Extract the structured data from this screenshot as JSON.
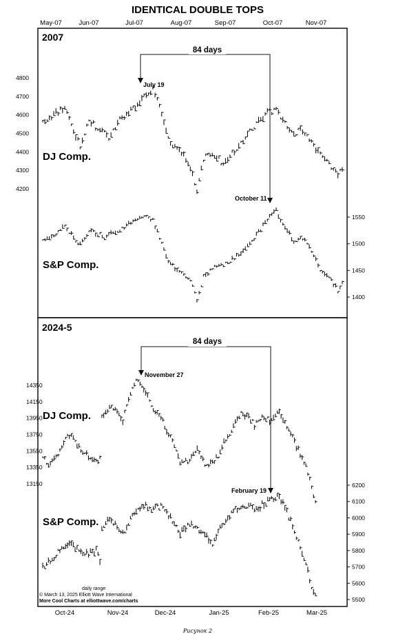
{
  "chart_data": {
    "type": "bar",
    "title": "IDENTICAL DOUBLE TOPS",
    "panels": [
      {
        "period": "2007",
        "top_months": [
          "May-07",
          "Jun-07",
          "Jul-07",
          "Aug-07",
          "Sep-07",
          "Oct-07",
          "Nov-07"
        ],
        "days_label": "84 days",
        "series": [
          {
            "name": "DJ Comp.",
            "yticks": [
              4200,
              4300,
              4400,
              4500,
              4600,
              4700,
              4800
            ],
            "yaxis_side": "left",
            "peak_label": "July 19",
            "anchors": [
              [
                0,
                4560
              ],
              [
                6,
                4610
              ],
              [
                10,
                4640
              ],
              [
                14,
                4520
              ],
              [
                17,
                4430
              ],
              [
                21,
                4580
              ],
              [
                25,
                4520
              ],
              [
                30,
                4480
              ],
              [
                34,
                4560
              ],
              [
                40,
                4620
              ],
              [
                46,
                4700
              ],
              [
                50,
                4740
              ],
              [
                53,
                4650
              ],
              [
                56,
                4500
              ],
              [
                60,
                4420
              ],
              [
                64,
                4380
              ],
              [
                68,
                4280
              ],
              [
                70,
                4180
              ],
              [
                73,
                4360
              ],
              [
                77,
                4400
              ],
              [
                82,
                4330
              ],
              [
                86,
                4390
              ],
              [
                90,
                4440
              ],
              [
                94,
                4520
              ],
              [
                98,
                4560
              ],
              [
                102,
                4610
              ],
              [
                106,
                4630
              ],
              [
                110,
                4560
              ],
              [
                114,
                4500
              ],
              [
                118,
                4520
              ],
              [
                122,
                4460
              ],
              [
                126,
                4380
              ],
              [
                130,
                4330
              ],
              [
                134,
                4280
              ],
              [
                136,
                4300
              ]
            ]
          },
          {
            "name": "S&P Comp.",
            "yticks": [
              1400,
              1450,
              1500,
              1550
            ],
            "yaxis_side": "right",
            "peak_label": "October 11",
            "anchors": [
              [
                0,
                1505
              ],
              [
                6,
                1520
              ],
              [
                10,
                1532
              ],
              [
                14,
                1512
              ],
              [
                17,
                1498
              ],
              [
                22,
                1525
              ],
              [
                28,
                1512
              ],
              [
                34,
                1525
              ],
              [
                40,
                1540
              ],
              [
                46,
                1552
              ],
              [
                50,
                1545
              ],
              [
                53,
                1510
              ],
              [
                56,
                1475
              ],
              [
                60,
                1455
              ],
              [
                64,
                1445
              ],
              [
                68,
                1425
              ],
              [
                70,
                1390
              ],
              [
                73,
                1440
              ],
              [
                78,
                1455
              ],
              [
                84,
                1465
              ],
              [
                90,
                1482
              ],
              [
                96,
                1510
              ],
              [
                102,
                1545
              ],
              [
                106,
                1562
              ],
              [
                110,
                1530
              ],
              [
                114,
                1505
              ],
              [
                118,
                1510
              ],
              [
                122,
                1488
              ],
              [
                126,
                1448
              ],
              [
                130,
                1438
              ],
              [
                134,
                1412
              ],
              [
                136,
                1430
              ]
            ]
          }
        ]
      },
      {
        "period": "2024-5",
        "bottom_months": [
          "Oct-24",
          "Nov-24",
          "Dec-24",
          "Jan-25",
          "Feb-25",
          "Mar-25"
        ],
        "days_label": "84 days",
        "series": [
          {
            "name": "DJ Comp.",
            "yticks": [
              13150,
              13350,
              13550,
              13750,
              13950,
              14150,
              14350
            ],
            "yaxis_side": "left",
            "peak_label": "November 27",
            "anchors": [
              [
                0,
                13460
              ],
              [
                4,
                13380
              ],
              [
                8,
                13510
              ],
              [
                13,
                13740
              ],
              [
                16,
                13700
              ],
              [
                20,
                13560
              ],
              [
                24,
                13480
              ],
              [
                28,
                13420
              ],
              [
                30,
                13460
              ],
              [
                31,
                13980
              ],
              [
                36,
                14100
              ],
              [
                42,
                13920
              ],
              [
                46,
                14270
              ],
              [
                49,
                14420
              ],
              [
                53,
                14310
              ],
              [
                57,
                14100
              ],
              [
                62,
                13950
              ],
              [
                66,
                13760
              ],
              [
                69,
                13620
              ],
              [
                72,
                13420
              ],
              [
                77,
                13420
              ],
              [
                81,
                13560
              ],
              [
                86,
                13350
              ],
              [
                89,
                13420
              ],
              [
                92,
                13480
              ],
              [
                95,
                13650
              ],
              [
                100,
                13850
              ],
              [
                104,
                14000
              ],
              [
                108,
                13980
              ],
              [
                111,
                13860
              ],
              [
                115,
                13960
              ],
              [
                120,
                13920
              ],
              [
                124,
                14020
              ],
              [
                127,
                13900
              ],
              [
                131,
                13710
              ],
              [
                134,
                13560
              ],
              [
                138,
                13350
              ],
              [
                141,
                13120
              ],
              [
                143,
                12930
              ]
            ]
          },
          {
            "name": "S&P Comp.",
            "yticks": [
              5500,
              5600,
              5700,
              5800,
              5900,
              6000,
              6100,
              6200
            ],
            "yaxis_side": "right",
            "peak_label": "February 19",
            "anchors": [
              [
                0,
                5700
              ],
              [
                4,
                5740
              ],
              [
                8,
                5790
              ],
              [
                13,
                5845
              ],
              [
                16,
                5820
              ],
              [
                20,
                5800
              ],
              [
                24,
                5780
              ],
              [
                28,
                5800
              ],
              [
                30,
                5730
              ],
              [
                31,
                5950
              ],
              [
                36,
                5990
              ],
              [
                42,
                5910
              ],
              [
                46,
                5990
              ],
              [
                49,
                6040
              ],
              [
                53,
                6080
              ],
              [
                57,
                6060
              ],
              [
                62,
                6070
              ],
              [
                66,
                6020
              ],
              [
                69,
                5960
              ],
              [
                72,
                5900
              ],
              [
                77,
                5960
              ],
              [
                81,
                5940
              ],
              [
                86,
                5880
              ],
              [
                89,
                5840
              ],
              [
                92,
                5920
              ],
              [
                95,
                5970
              ],
              [
                100,
                6050
              ],
              [
                104,
                6060
              ],
              [
                108,
                6080
              ],
              [
                111,
                6040
              ],
              [
                115,
                6080
              ],
              [
                120,
                6110
              ],
              [
                124,
                6130
              ],
              [
                127,
                6060
              ],
              [
                131,
                5950
              ],
              [
                134,
                5850
              ],
              [
                138,
                5730
              ],
              [
                141,
                5570
              ],
              [
                143,
                5520
              ]
            ]
          }
        ]
      }
    ],
    "footnote": {
      "daily_range": "daily range",
      "copyright": "© March 13, 2025 Elliott Wave International",
      "link": "More Cool Charts at elliottwave.com/charts"
    }
  },
  "caption": "Рисунок 2"
}
